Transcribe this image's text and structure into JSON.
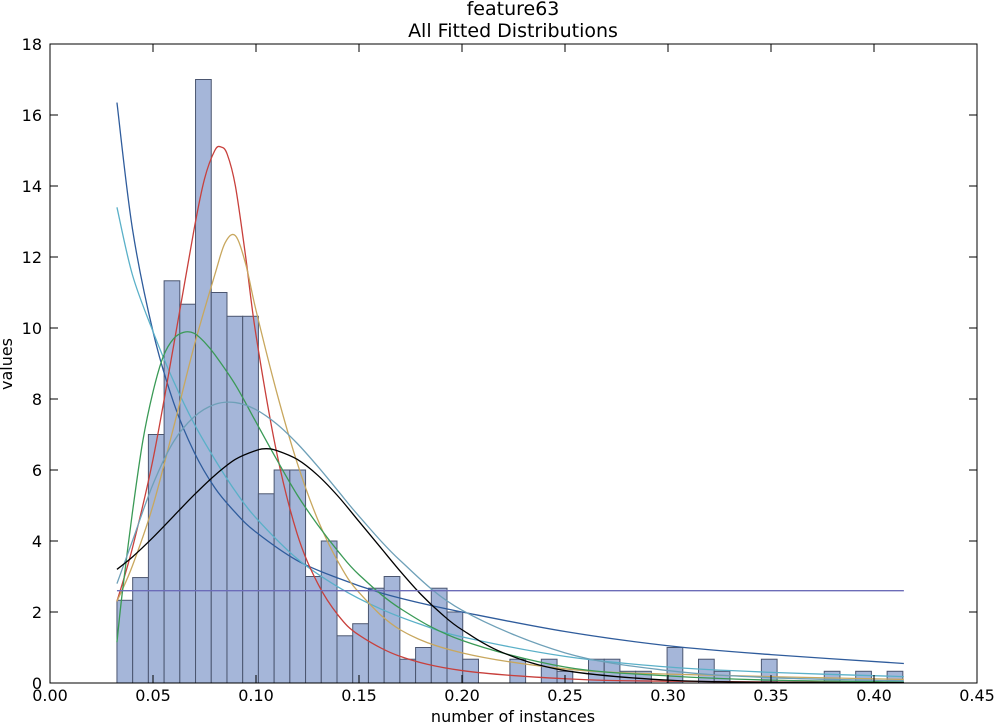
{
  "chart_data": {
    "type": "histogram",
    "title": "feature63",
    "subtitle": "All Fitted Distributions",
    "xlabel": "number of instances",
    "ylabel": "values",
    "xlim": [
      0.0,
      0.45
    ],
    "ylim": [
      0,
      18
    ],
    "xticks": [
      "0.00",
      "0.05",
      "0.10",
      "0.15",
      "0.20",
      "0.25",
      "0.30",
      "0.35",
      "0.40",
      "0.45"
    ],
    "yticks": [
      "0",
      "2",
      "4",
      "6",
      "8",
      "10",
      "12",
      "14",
      "16",
      "18"
    ],
    "grid": false,
    "bar_color": "#a5b6d9",
    "bar_edge_color": "#4b5670",
    "bins": {
      "start": 0.0325,
      "width": 0.00763,
      "heights": [
        2.33,
        2.97,
        7.0,
        11.33,
        10.67,
        17.0,
        11.0,
        10.33,
        10.33,
        5.33,
        6.0,
        6.0,
        3.0,
        4.0,
        1.33,
        1.67,
        2.67,
        3.0,
        0.67,
        1.0,
        2.67,
        2.0,
        0.67,
        0,
        0,
        0.67,
        0,
        0.67,
        0.33,
        0,
        0.67,
        0.67,
        0.33,
        0.33,
        0,
        1.0,
        0,
        0.67,
        0.33,
        0,
        0,
        0.67,
        0,
        0,
        0,
        0.33,
        0,
        0.33,
        0,
        0.33
      ]
    },
    "series": [
      {
        "color": "#2f5c9c",
        "x": [
          0.0325,
          0.04,
          0.05,
          0.06,
          0.07,
          0.08,
          0.09,
          0.1,
          0.12,
          0.14,
          0.16,
          0.18,
          0.2,
          0.25,
          0.3,
          0.35,
          0.4145
        ],
        "y": [
          16.35,
          12.8,
          9.9,
          7.9,
          6.5,
          5.5,
          4.8,
          4.25,
          3.45,
          2.95,
          2.55,
          2.25,
          2.0,
          1.45,
          1.05,
          0.8,
          0.55
        ]
      },
      {
        "color": "#5ab0c8",
        "x": [
          0.0325,
          0.04,
          0.05,
          0.06,
          0.07,
          0.08,
          0.09,
          0.1,
          0.12,
          0.14,
          0.16,
          0.18,
          0.2,
          0.25,
          0.3,
          0.35,
          0.4145
        ],
        "y": [
          13.4,
          11.5,
          9.9,
          8.5,
          7.3,
          6.3,
          5.4,
          4.65,
          3.5,
          2.7,
          2.1,
          1.65,
          1.3,
          0.75,
          0.45,
          0.3,
          0.18
        ]
      },
      {
        "color": "#c8403c",
        "x": [
          0.0325,
          0.04,
          0.05,
          0.06,
          0.07,
          0.075,
          0.08,
          0.083,
          0.086,
          0.09,
          0.095,
          0.1,
          0.11,
          0.12,
          0.13,
          0.14,
          0.15,
          0.17,
          0.2,
          0.25,
          0.3,
          0.4145
        ],
        "y": [
          2.3,
          3.8,
          6.3,
          9.5,
          12.8,
          14.2,
          15.0,
          15.1,
          14.9,
          14.0,
          12.0,
          9.8,
          6.5,
          4.2,
          2.8,
          1.9,
          1.35,
          0.75,
          0.35,
          0.12,
          0.05,
          0.01
        ]
      },
      {
        "color": "#c8a75e",
        "x": [
          0.0325,
          0.04,
          0.05,
          0.06,
          0.07,
          0.08,
          0.085,
          0.09,
          0.095,
          0.1,
          0.11,
          0.12,
          0.13,
          0.14,
          0.15,
          0.17,
          0.2,
          0.25,
          0.3,
          0.4145
        ],
        "y": [
          2.3,
          3.3,
          5.0,
          7.2,
          9.5,
          11.5,
          12.4,
          12.6,
          11.8,
          10.5,
          8.2,
          6.2,
          4.6,
          3.4,
          2.55,
          1.5,
          0.85,
          0.4,
          0.25,
          0.1
        ]
      },
      {
        "color": "#3a9a56",
        "x": [
          0.0325,
          0.035,
          0.04,
          0.045,
          0.05,
          0.055,
          0.06,
          0.065,
          0.07,
          0.075,
          0.08,
          0.09,
          0.1,
          0.11,
          0.12,
          0.13,
          0.14,
          0.15,
          0.17,
          0.2,
          0.25,
          0.3,
          0.35,
          0.4145
        ],
        "y": [
          1.15,
          2.5,
          4.8,
          6.8,
          8.2,
          9.2,
          9.7,
          9.88,
          9.85,
          9.6,
          9.25,
          8.4,
          7.35,
          6.3,
          5.3,
          4.45,
          3.7,
          3.05,
          2.1,
          1.2,
          0.45,
          0.2,
          0.08,
          0.03
        ]
      },
      {
        "color": "#6ea0b8",
        "x": [
          0.0325,
          0.04,
          0.05,
          0.06,
          0.07,
          0.08,
          0.09,
          0.1,
          0.11,
          0.12,
          0.13,
          0.14,
          0.15,
          0.17,
          0.2,
          0.25,
          0.3,
          0.35,
          0.4145
        ],
        "y": [
          2.8,
          4.0,
          5.6,
          6.8,
          7.5,
          7.85,
          7.9,
          7.7,
          7.3,
          6.75,
          6.1,
          5.4,
          4.7,
          3.45,
          2.05,
          0.85,
          0.35,
          0.15,
          0.06
        ]
      },
      {
        "color": "#000000",
        "x": [
          0.0325,
          0.04,
          0.05,
          0.06,
          0.07,
          0.08,
          0.09,
          0.1,
          0.105,
          0.11,
          0.12,
          0.13,
          0.14,
          0.15,
          0.16,
          0.17,
          0.18,
          0.19,
          0.2,
          0.22,
          0.25,
          0.3,
          0.35,
          0.4145
        ],
        "y": [
          3.2,
          3.55,
          4.1,
          4.7,
          5.3,
          5.85,
          6.3,
          6.55,
          6.6,
          6.55,
          6.3,
          5.85,
          5.25,
          4.55,
          3.85,
          3.15,
          2.5,
          1.95,
          1.5,
          0.85,
          0.35,
          0.08,
          0.02,
          0.01
        ]
      },
      {
        "color": "#6c6cb8",
        "x": [
          0.0325,
          0.4145
        ],
        "y": [
          2.6,
          2.6
        ]
      }
    ]
  }
}
